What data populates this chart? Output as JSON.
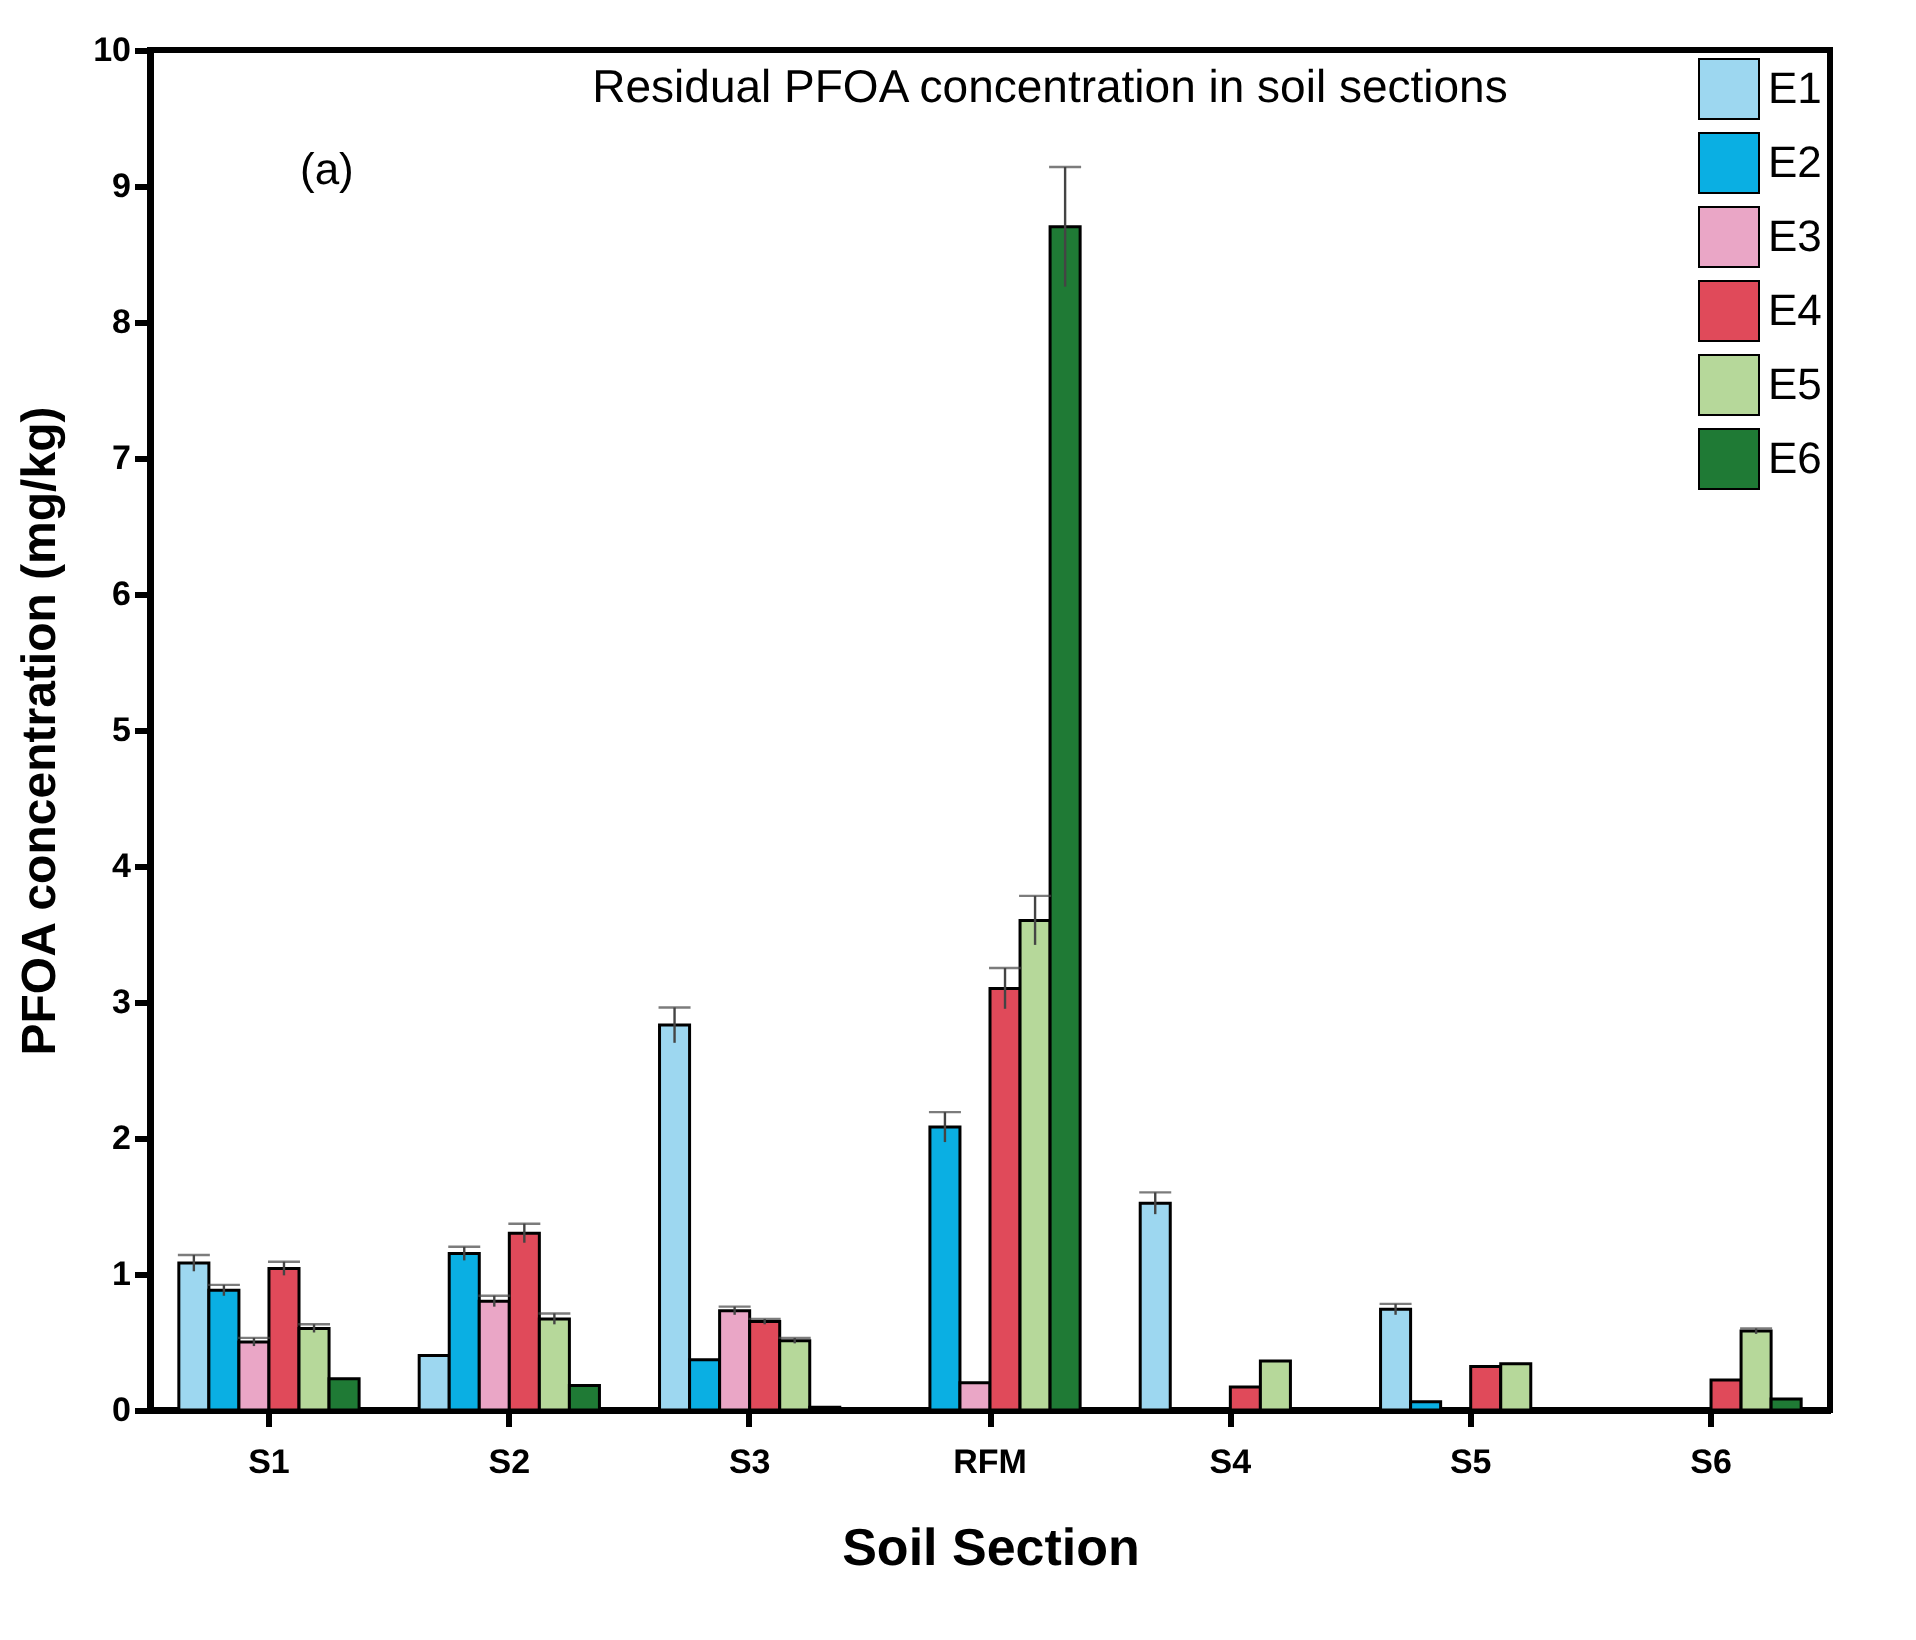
{
  "chart_data": {
    "type": "bar",
    "title": "Residual PFOA concentration in soil sections",
    "xlabel": "Soil Section",
    "ylabel": "PFOA concentration (mg/kg)",
    "annotations": [
      "(a)"
    ],
    "categories": [
      "S1",
      "S2",
      "S3",
      "RFM",
      "S4",
      "S5",
      "S6"
    ],
    "series": [
      {
        "name": "E1",
        "color": "#9dd7f0",
        "values": [
          1.08,
          0.4,
          2.83,
          null,
          1.52,
          0.74,
          null
        ],
        "errors": [
          0.06,
          null,
          0.13,
          null,
          0.08,
          0.04,
          null
        ]
      },
      {
        "name": "E2",
        "color": "#0aafe3",
        "values": [
          0.88,
          1.15,
          0.37,
          2.08,
          null,
          0.06,
          null
        ],
        "errors": [
          0.04,
          0.05,
          null,
          0.11,
          null,
          null,
          null
        ]
      },
      {
        "name": "E3",
        "color": "#eaa6c6",
        "values": [
          0.5,
          0.8,
          0.73,
          0.2,
          null,
          null,
          null
        ],
        "errors": [
          0.03,
          0.04,
          0.03,
          null,
          null,
          null,
          null
        ]
      },
      {
        "name": "E4",
        "color": "#e04a5a",
        "values": [
          1.04,
          1.3,
          0.65,
          3.1,
          0.17,
          0.32,
          0.22
        ],
        "errors": [
          0.05,
          0.07,
          0.02,
          0.15,
          null,
          null,
          null
        ]
      },
      {
        "name": "E5",
        "color": "#b6d89a",
        "values": [
          0.6,
          0.67,
          0.51,
          3.6,
          0.36,
          0.34,
          0.58
        ],
        "errors": [
          0.03,
          0.04,
          0.02,
          0.18,
          null,
          null,
          0.02
        ]
      },
      {
        "name": "E6",
        "color": "#1f7a35",
        "values": [
          0.23,
          0.18,
          0.02,
          8.7,
          null,
          null,
          0.08
        ],
        "errors": [
          null,
          null,
          null,
          0.44,
          null,
          null,
          null
        ]
      }
    ],
    "ylim": [
      0,
      10
    ],
    "yticks": [
      0,
      1,
      2,
      3,
      4,
      5,
      6,
      7,
      8,
      9,
      10
    ],
    "grid": false,
    "legend": "top right"
  }
}
